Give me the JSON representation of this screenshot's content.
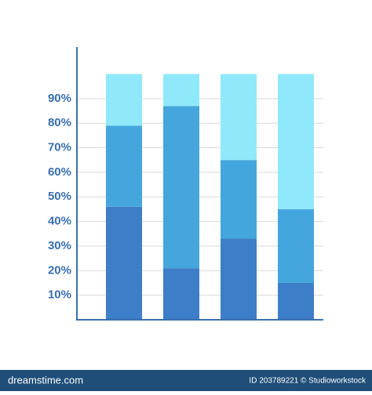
{
  "chart_data": {
    "type": "stacked_bar",
    "categories": [
      null,
      null,
      null,
      null
    ],
    "series": [
      {
        "color": "#3d7ec8",
        "values": [
          46,
          21,
          33,
          15
        ]
      },
      {
        "color": "#44a6dc",
        "values": [
          33,
          66,
          32,
          30
        ]
      },
      {
        "color": "#8fe9fb",
        "values": [
          21,
          13,
          35,
          55
        ]
      }
    ],
    "ylim": [
      0,
      111
    ],
    "yticks": [
      {
        "value": 10,
        "label": "10%"
      },
      {
        "value": 20,
        "label": "20%"
      },
      {
        "value": 30,
        "label": "30%"
      },
      {
        "value": 40,
        "label": "40%"
      },
      {
        "value": 50,
        "label": "50%"
      },
      {
        "value": 60,
        "label": "60%"
      },
      {
        "value": 70,
        "label": "70%"
      },
      {
        "value": 80,
        "label": "80%"
      },
      {
        "value": 90,
        "label": "90%"
      }
    ],
    "grid": true
  },
  "footer": {
    "brand": "dreamstime.com",
    "credit": "ID 203789221 © Studioworkstock"
  }
}
